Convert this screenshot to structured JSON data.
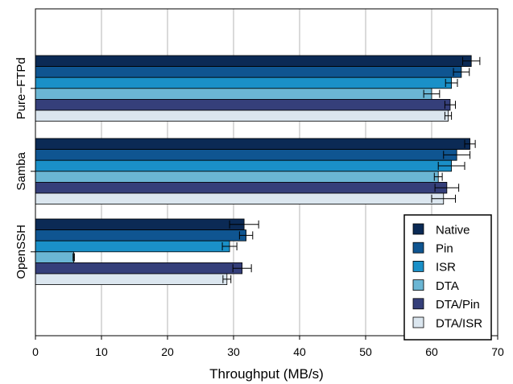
{
  "chart_data": {
    "type": "bar",
    "orientation": "horizontal",
    "categories": [
      "Pure−FTPd",
      "Samba",
      "OpenSSH"
    ],
    "series": [
      {
        "name": "Native",
        "color": "#0b2a55",
        "values": [
          66.0,
          65.8,
          31.6
        ],
        "errors": [
          1.3,
          0.8,
          2.2
        ]
      },
      {
        "name": "Pin",
        "color": "#0f5591",
        "values": [
          64.5,
          63.8,
          31.9
        ],
        "errors": [
          1.2,
          2.0,
          1.0
        ]
      },
      {
        "name": "ISR",
        "color": "#1a90c8",
        "values": [
          63.0,
          63.0,
          29.4
        ],
        "errors": [
          0.9,
          2.0,
          1.1
        ]
      },
      {
        "name": "DTA",
        "color": "#6bb6d4",
        "values": [
          60.0,
          61.0,
          5.8
        ],
        "errors": [
          1.2,
          0.6,
          0.1
        ]
      },
      {
        "name": "DTA/Pin",
        "color": "#353f7a",
        "values": [
          62.8,
          62.3,
          31.3
        ],
        "errors": [
          0.8,
          1.8,
          1.4
        ]
      },
      {
        "name": "DTA/ISR",
        "color": "#dbe6ef",
        "values": [
          62.5,
          61.8,
          29.0
        ],
        "errors": [
          0.5,
          1.8,
          0.6
        ]
      }
    ],
    "xlabel": "Throughput (MB/s)",
    "ylabel": "",
    "xlim": [
      0,
      70
    ],
    "xticks": [
      "0",
      "10",
      "20",
      "30",
      "40",
      "50",
      "60",
      "70"
    ],
    "grid": "vertical",
    "legend_position": "bottom-right"
  }
}
